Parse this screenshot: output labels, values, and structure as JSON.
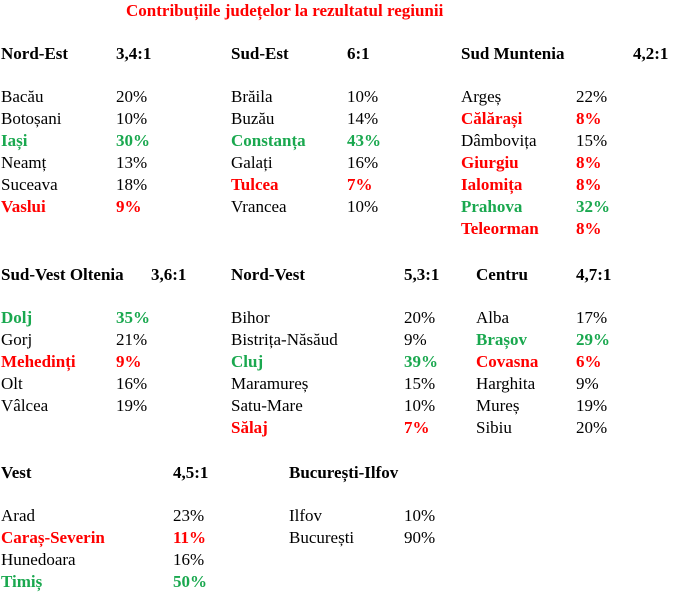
{
  "title": "Contribuțiile județelor la rezultatul regiunii",
  "colors": {
    "title": "#ff0000",
    "max": "#1aa84f",
    "min": "#ff0000"
  },
  "regions": [
    {
      "name": "Nord-Est",
      "ratio": "3,4:1",
      "counties": [
        {
          "name": "Bacău",
          "pct": "20%",
          "hl": ""
        },
        {
          "name": "Botoșani",
          "pct": "10%",
          "hl": ""
        },
        {
          "name": "Iași",
          "pct": "30%",
          "hl": "green"
        },
        {
          "name": "Neamț",
          "pct": "13%",
          "hl": ""
        },
        {
          "name": "Suceava",
          "pct": "18%",
          "hl": ""
        },
        {
          "name": "Vaslui",
          "pct": "9%",
          "hl": "red"
        }
      ]
    },
    {
      "name": "Sud-Est",
      "ratio": "6:1",
      "counties": [
        {
          "name": "Brăila",
          "pct": "10%",
          "hl": ""
        },
        {
          "name": "Buzău",
          "pct": "14%",
          "hl": ""
        },
        {
          "name": "Constanța",
          "pct": "43%",
          "hl": "green"
        },
        {
          "name": "Galați",
          "pct": "16%",
          "hl": ""
        },
        {
          "name": "Tulcea",
          "pct": "7%",
          "hl": "red"
        },
        {
          "name": "Vrancea",
          "pct": "10%",
          "hl": ""
        }
      ]
    },
    {
      "name": "Sud Muntenia",
      "ratio": "4,2:1",
      "counties": [
        {
          "name": "Argeș",
          "pct": "22%",
          "hl": ""
        },
        {
          "name": "Călărași",
          "pct": "8%",
          "hl": "red"
        },
        {
          "name": "Dâmbovița",
          "pct": "15%",
          "hl": ""
        },
        {
          "name": "Giurgiu",
          "pct": "8%",
          "hl": "red"
        },
        {
          "name": "Ialomița",
          "pct": "8%",
          "hl": "red"
        },
        {
          "name": "Prahova",
          "pct": "32%",
          "hl": "green"
        },
        {
          "name": "Teleorman",
          "pct": "8%",
          "hl": "red"
        }
      ]
    },
    {
      "name": "Sud-Vest Oltenia",
      "ratio": "3,6:1",
      "counties": [
        {
          "name": "Dolj",
          "pct": "35%",
          "hl": "green"
        },
        {
          "name": "Gorj",
          "pct": "21%",
          "hl": ""
        },
        {
          "name": "Mehedinți",
          "pct": "9%",
          "hl": "red"
        },
        {
          "name": "Olt",
          "pct": "16%",
          "hl": ""
        },
        {
          "name": "Vâlcea",
          "pct": "19%",
          "hl": ""
        }
      ]
    },
    {
      "name": "Nord-Vest",
      "ratio": "5,3:1",
      "counties": [
        {
          "name": "Bihor",
          "pct": "20%",
          "hl": ""
        },
        {
          "name": "Bistrița-Năsăud",
          "pct": "9%",
          "hl": ""
        },
        {
          "name": "Cluj",
          "pct": "39%",
          "hl": "green"
        },
        {
          "name": "Maramureș",
          "pct": "15%",
          "hl": ""
        },
        {
          "name": "Satu-Mare",
          "pct": "10%",
          "hl": ""
        },
        {
          "name": "Sălaj",
          "pct": "7%",
          "hl": "red"
        }
      ]
    },
    {
      "name": "Centru",
      "ratio": "4,7:1",
      "counties": [
        {
          "name": "Alba",
          "pct": "17%",
          "hl": ""
        },
        {
          "name": "Brașov",
          "pct": "29%",
          "hl": "green"
        },
        {
          "name": "Covasna",
          "pct": "6%",
          "hl": "red"
        },
        {
          "name": "Harghita",
          "pct": "9%",
          "hl": ""
        },
        {
          "name": "Mureș",
          "pct": "19%",
          "hl": ""
        },
        {
          "name": "Sibiu",
          "pct": "20%",
          "hl": ""
        }
      ]
    },
    {
      "name": "Vest",
      "ratio": "4,5:1",
      "counties": [
        {
          "name": "Arad",
          "pct": "23%",
          "hl": ""
        },
        {
          "name": "Caraș-Severin",
          "pct": "11%",
          "hl": "red"
        },
        {
          "name": "Hunedoara",
          "pct": "16%",
          "hl": ""
        },
        {
          "name": "Timiș",
          "pct": "50%",
          "hl": "green"
        }
      ]
    },
    {
      "name": "București-Ilfov",
      "ratio": "",
      "counties": [
        {
          "name": "Ilfov",
          "pct": "10%",
          "hl": ""
        },
        {
          "name": "București",
          "pct": "90%",
          "hl": ""
        }
      ]
    }
  ]
}
